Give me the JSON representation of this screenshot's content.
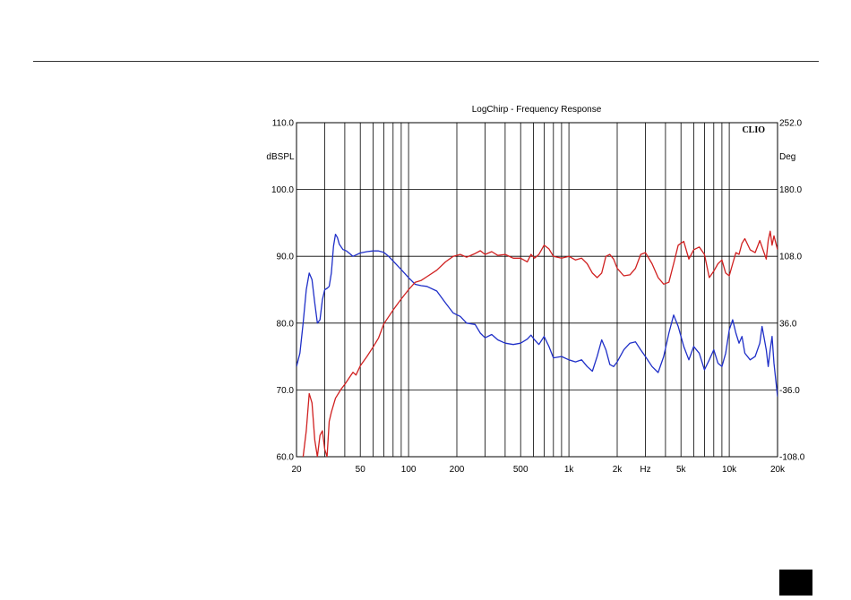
{
  "chart_data": {
    "type": "line",
    "title": "LogChirp - Frequency Response",
    "brand": "CLIO",
    "xscale": "log",
    "xlim": [
      20,
      20000
    ],
    "x_ticks": [
      {
        "value": 20,
        "label": "20"
      },
      {
        "value": 50,
        "label": "50"
      },
      {
        "value": 100,
        "label": "100"
      },
      {
        "value": 200,
        "label": "200"
      },
      {
        "value": 500,
        "label": "500"
      },
      {
        "value": 1000,
        "label": "1k"
      },
      {
        "value": 2000,
        "label": "2k"
      },
      {
        "value": 3000,
        "label": "Hz"
      },
      {
        "value": 5000,
        "label": "5k"
      },
      {
        "value": 10000,
        "label": "10k"
      },
      {
        "value": 20000,
        "label": "20k"
      }
    ],
    "y_left": {
      "label": "dBSPL",
      "lim": [
        60,
        110
      ],
      "ticks": [
        "60.0",
        "70.0",
        "80.0",
        "90.0",
        "100.0",
        "110.0"
      ]
    },
    "y_right": {
      "label": "Deg",
      "lim": [
        -108,
        252
      ],
      "ticks": [
        "-108.0",
        "-36.0",
        "36.0",
        "108.0",
        "180.0",
        "252.0"
      ]
    },
    "grid": true,
    "colors": {
      "magnitude": "#1f2fc8",
      "phase": "#d02020",
      "grid": "#000000",
      "background": "#ffffff"
    },
    "series": [
      {
        "axis": "left",
        "color": "#1f2fc8",
        "points": [
          [
            20,
            73.5
          ],
          [
            21,
            75.5
          ],
          [
            22,
            80
          ],
          [
            23,
            85
          ],
          [
            24,
            87.5
          ],
          [
            25,
            86.5
          ],
          [
            26,
            83
          ],
          [
            27,
            80
          ],
          [
            28,
            80.5
          ],
          [
            29,
            83.5
          ],
          [
            30,
            85
          ],
          [
            31,
            85.2
          ],
          [
            32,
            85.5
          ],
          [
            33,
            87.5
          ],
          [
            34,
            91.5
          ],
          [
            35,
            93.3
          ],
          [
            36,
            92.8
          ],
          [
            37,
            91.8
          ],
          [
            39,
            91
          ],
          [
            41,
            90.8
          ],
          [
            43,
            90.4
          ],
          [
            45,
            90
          ],
          [
            47,
            90.2
          ],
          [
            50,
            90.5
          ],
          [
            55,
            90.7
          ],
          [
            60,
            90.8
          ],
          [
            65,
            90.8
          ],
          [
            70,
            90.6
          ],
          [
            75,
            90
          ],
          [
            80,
            89.3
          ],
          [
            90,
            88
          ],
          [
            100,
            86.8
          ],
          [
            110,
            85.8
          ],
          [
            120,
            85.6
          ],
          [
            130,
            85.5
          ],
          [
            150,
            84.8
          ],
          [
            170,
            83
          ],
          [
            190,
            81.5
          ],
          [
            210,
            81
          ],
          [
            230,
            80
          ],
          [
            260,
            79.8
          ],
          [
            280,
            78.5
          ],
          [
            300,
            77.8
          ],
          [
            330,
            78.3
          ],
          [
            360,
            77.5
          ],
          [
            400,
            77
          ],
          [
            450,
            76.8
          ],
          [
            500,
            77
          ],
          [
            550,
            77.6
          ],
          [
            580,
            78.2
          ],
          [
            610,
            77.5
          ],
          [
            650,
            76.8
          ],
          [
            700,
            78
          ],
          [
            750,
            76.5
          ],
          [
            800,
            74.8
          ],
          [
            900,
            75
          ],
          [
            1000,
            74.5
          ],
          [
            1100,
            74.2
          ],
          [
            1200,
            74.5
          ],
          [
            1300,
            73.5
          ],
          [
            1400,
            72.8
          ],
          [
            1500,
            75
          ],
          [
            1600,
            77.5
          ],
          [
            1700,
            76
          ],
          [
            1800,
            73.8
          ],
          [
            1900,
            73.5
          ],
          [
            2000,
            74.2
          ],
          [
            2200,
            76
          ],
          [
            2400,
            77
          ],
          [
            2600,
            77.2
          ],
          [
            2800,
            76
          ],
          [
            3000,
            75
          ],
          [
            3300,
            73.5
          ],
          [
            3600,
            72.6
          ],
          [
            3900,
            75
          ],
          [
            4200,
            78.5
          ],
          [
            4500,
            81.2
          ],
          [
            4800,
            79.5
          ],
          [
            5200,
            76.5
          ],
          [
            5600,
            74.5
          ],
          [
            6000,
            76.5
          ],
          [
            6500,
            75.5
          ],
          [
            7000,
            73
          ],
          [
            7500,
            74.5
          ],
          [
            8000,
            76
          ],
          [
            8500,
            74
          ],
          [
            9000,
            73.5
          ],
          [
            9500,
            75.5
          ],
          [
            10000,
            79
          ],
          [
            10500,
            80.5
          ],
          [
            11000,
            78.5
          ],
          [
            11500,
            77
          ],
          [
            12000,
            78
          ],
          [
            12500,
            75.5
          ],
          [
            13500,
            74.5
          ],
          [
            14500,
            75
          ],
          [
            15500,
            77
          ],
          [
            16000,
            79.5
          ],
          [
            17000,
            76
          ],
          [
            17500,
            73.5
          ],
          [
            18000,
            76
          ],
          [
            18500,
            78
          ],
          [
            19000,
            74
          ],
          [
            20000,
            69
          ]
        ]
      },
      {
        "axis": "right",
        "color": "#d02020",
        "points": [
          [
            22,
            -108
          ],
          [
            23,
            -80
          ],
          [
            24,
            -40
          ],
          [
            25,
            -50
          ],
          [
            26,
            -90
          ],
          [
            27,
            -108
          ],
          [
            28,
            -85
          ],
          [
            29,
            -80
          ],
          [
            30,
            -100
          ],
          [
            31,
            -108
          ],
          [
            32,
            -70
          ],
          [
            33,
            -60
          ],
          [
            35,
            -45
          ],
          [
            38,
            -35
          ],
          [
            40,
            -30
          ],
          [
            43,
            -22
          ],
          [
            45,
            -17
          ],
          [
            47,
            -20
          ],
          [
            50,
            -10
          ],
          [
            55,
            0
          ],
          [
            60,
            10
          ],
          [
            65,
            20
          ],
          [
            70,
            35
          ],
          [
            80,
            50
          ],
          [
            90,
            62
          ],
          [
            100,
            72
          ],
          [
            110,
            80
          ],
          [
            120,
            82
          ],
          [
            130,
            86
          ],
          [
            150,
            93
          ],
          [
            170,
            102
          ],
          [
            190,
            108
          ],
          [
            210,
            110
          ],
          [
            230,
            107
          ],
          [
            260,
            111
          ],
          [
            280,
            114
          ],
          [
            300,
            110
          ],
          [
            330,
            113
          ],
          [
            360,
            109
          ],
          [
            400,
            110
          ],
          [
            450,
            106
          ],
          [
            500,
            106
          ],
          [
            550,
            102
          ],
          [
            580,
            110
          ],
          [
            610,
            106
          ],
          [
            650,
            110
          ],
          [
            700,
            120
          ],
          [
            750,
            116
          ],
          [
            800,
            108
          ],
          [
            900,
            106
          ],
          [
            1000,
            108
          ],
          [
            1100,
            104
          ],
          [
            1200,
            106
          ],
          [
            1300,
            100
          ],
          [
            1400,
            90
          ],
          [
            1500,
            85
          ],
          [
            1600,
            90
          ],
          [
            1700,
            108
          ],
          [
            1800,
            110
          ],
          [
            1900,
            105
          ],
          [
            2000,
            95
          ],
          [
            2200,
            87
          ],
          [
            2400,
            88
          ],
          [
            2600,
            95
          ],
          [
            2800,
            110
          ],
          [
            3000,
            112
          ],
          [
            3300,
            100
          ],
          [
            3600,
            85
          ],
          [
            3900,
            78
          ],
          [
            4200,
            80
          ],
          [
            4500,
            100
          ],
          [
            4800,
            120
          ],
          [
            5200,
            124
          ],
          [
            5600,
            105
          ],
          [
            6000,
            115
          ],
          [
            6500,
            118
          ],
          [
            7000,
            110
          ],
          [
            7500,
            85
          ],
          [
            8000,
            92
          ],
          [
            8500,
            100
          ],
          [
            9000,
            104
          ],
          [
            9500,
            90
          ],
          [
            10000,
            87
          ],
          [
            10500,
            100
          ],
          [
            11000,
            112
          ],
          [
            11500,
            110
          ],
          [
            12000,
            122
          ],
          [
            12500,
            127
          ],
          [
            13500,
            115
          ],
          [
            14500,
            112
          ],
          [
            15500,
            125
          ],
          [
            16000,
            118
          ],
          [
            17000,
            105
          ],
          [
            17500,
            125
          ],
          [
            18000,
            135
          ],
          [
            18500,
            120
          ],
          [
            19000,
            130
          ],
          [
            20000,
            115
          ]
        ]
      }
    ]
  }
}
